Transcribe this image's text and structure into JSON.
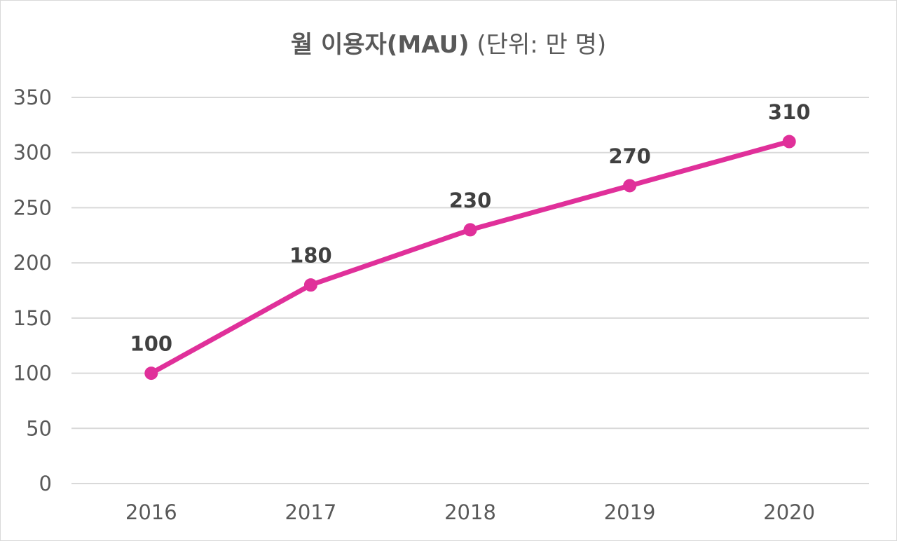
{
  "chart_data": {
    "type": "line",
    "title": "월 이용자(MAU)",
    "subtitle": "(단위: 만 명)",
    "xlabel": "",
    "ylabel": "",
    "categories": [
      "2016",
      "2017",
      "2018",
      "2019",
      "2020"
    ],
    "series": [
      {
        "name": "월 이용자(MAU)",
        "values": [
          100,
          180,
          230,
          270,
          310
        ]
      }
    ],
    "data_labels": [
      "100",
      "180",
      "230",
      "270",
      "310"
    ],
    "ylim": [
      0,
      350
    ],
    "yticks": [
      "0",
      "50",
      "100",
      "150",
      "200",
      "250",
      "300",
      "350"
    ],
    "grid": true,
    "legend": "none",
    "color": "#e0309a"
  }
}
